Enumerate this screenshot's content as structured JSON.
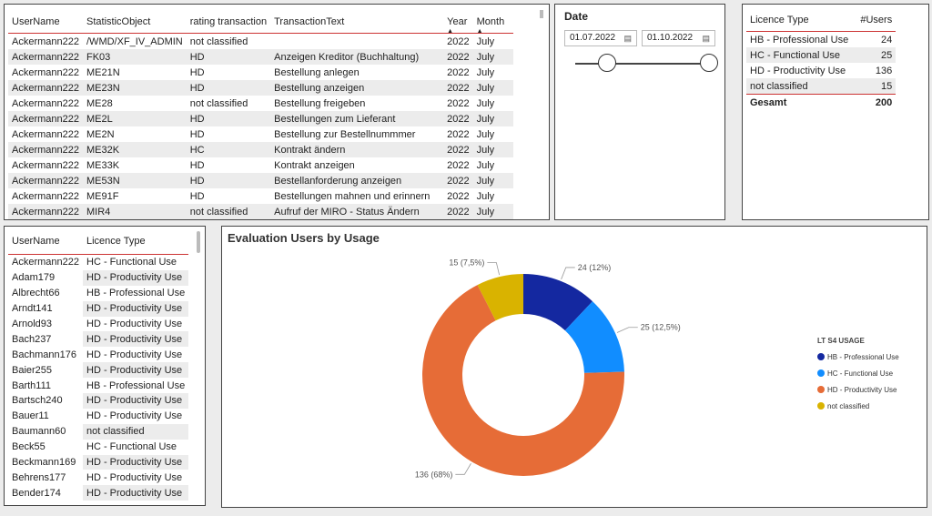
{
  "transactions": {
    "columns": [
      "UserName",
      "StatisticObject",
      "rating transaction",
      "TransactionText",
      "Year",
      "Month"
    ],
    "rows": [
      [
        "Ackermann222",
        "/WMD/XF_IV_ADMIN",
        "not classified",
        "",
        "2022",
        "July"
      ],
      [
        "Ackermann222",
        "FK03",
        "HD",
        "Anzeigen Kreditor (Buchhaltung)",
        "2022",
        "July"
      ],
      [
        "Ackermann222",
        "ME21N",
        "HD",
        "Bestellung anlegen",
        "2022",
        "July"
      ],
      [
        "Ackermann222",
        "ME23N",
        "HD",
        "Bestellung anzeigen",
        "2022",
        "July"
      ],
      [
        "Ackermann222",
        "ME28",
        "not classified",
        "Bestellung freigeben",
        "2022",
        "July"
      ],
      [
        "Ackermann222",
        "ME2L",
        "HD",
        "Bestellungen zum Lieferant",
        "2022",
        "July"
      ],
      [
        "Ackermann222",
        "ME2N",
        "HD",
        "Bestellung zur Bestellnummmer",
        "2022",
        "July"
      ],
      [
        "Ackermann222",
        "ME32K",
        "HC",
        "Kontrakt ändern",
        "2022",
        "July"
      ],
      [
        "Ackermann222",
        "ME33K",
        "HD",
        "Kontrakt anzeigen",
        "2022",
        "July"
      ],
      [
        "Ackermann222",
        "ME53N",
        "HD",
        "Bestellanforderung anzeigen",
        "2022",
        "July"
      ],
      [
        "Ackermann222",
        "ME91F",
        "HD",
        "Bestellungen mahnen und erinnern",
        "2022",
        "July"
      ],
      [
        "Ackermann222",
        "MIR4",
        "not classified",
        "Aufruf der MIRO - Status Ändern",
        "2022",
        "July"
      ]
    ]
  },
  "date_slicer": {
    "title": "Date",
    "start": "01.07.2022",
    "end": "01.10.2022",
    "calendar_icon": "calendar-icon"
  },
  "licence_summary": {
    "columns": [
      "Licence Type",
      "#Users"
    ],
    "rows": [
      [
        "HB - Professional Use",
        "24"
      ],
      [
        "HC - Functional Use",
        "25"
      ],
      [
        "HD - Productivity Use",
        "136"
      ],
      [
        "not classified",
        "15"
      ]
    ],
    "total_label": "Gesamt",
    "total_value": "200"
  },
  "users": {
    "columns": [
      "UserName",
      "Licence Type"
    ],
    "rows": [
      [
        "Ackermann222",
        "HC - Functional Use"
      ],
      [
        "Adam179",
        "HD - Productivity Use"
      ],
      [
        "Albrecht66",
        "HB - Professional Use"
      ],
      [
        "Arndt141",
        "HD - Productivity Use"
      ],
      [
        "Arnold93",
        "HD - Productivity Use"
      ],
      [
        "Bach237",
        "HD - Productivity Use"
      ],
      [
        "Bachmann176",
        "HD - Productivity Use"
      ],
      [
        "Baier255",
        "HD - Productivity Use"
      ],
      [
        "Barth111",
        "HB - Professional Use"
      ],
      [
        "Bartsch240",
        "HD - Productivity Use"
      ],
      [
        "Bauer11",
        "HD - Productivity Use"
      ],
      [
        "Baumann60",
        "not classified"
      ],
      [
        "Beck55",
        "HC - Functional Use"
      ],
      [
        "Beckmann169",
        "HD - Productivity Use"
      ],
      [
        "Behrens177",
        "HD - Productivity Use"
      ],
      [
        "Bender174",
        "HD - Productivity Use"
      ]
    ]
  },
  "chart_data": {
    "type": "pie",
    "title": "Evaluation Users by Usage",
    "legend_title": "LT S4 USAGE",
    "legend_position": "right",
    "categories": [
      "HB - Professional Use",
      "HC - Functional Use",
      "HD - Productivity Use",
      "not classified"
    ],
    "values": [
      24,
      25,
      136,
      15
    ],
    "data_labels": [
      "24 (12%)",
      "25 (12,5%)",
      "136 (68%)",
      "15 (7,5%)"
    ],
    "colors": [
      "#1428a0",
      "#118dff",
      "#e66c37",
      "#d9b300"
    ]
  }
}
